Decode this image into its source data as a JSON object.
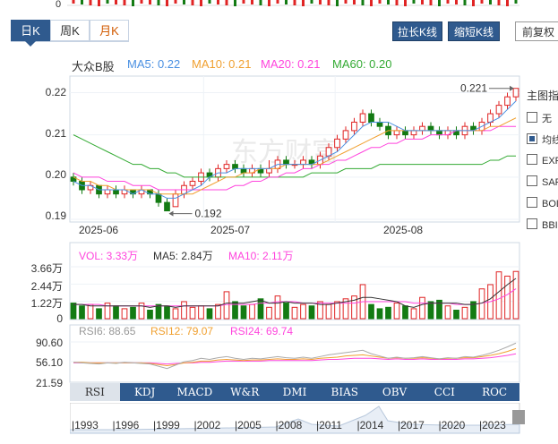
{
  "period_tabs": {
    "day": "日K",
    "week": "周K",
    "month": "月K"
  },
  "buttons": {
    "stretch": "拉长K线",
    "shrink": "缩短K线",
    "restore": "前复权"
  },
  "main_legend": {
    "name": "大众B股",
    "ma5": "MA5: 0.22",
    "ma10": "MA10: 0.21",
    "ma20": "MA20: 0.21",
    "ma60": "MA60: 0.20"
  },
  "price_axis": [
    "0.22",
    "0.21",
    "0.20",
    "0.19"
  ],
  "date_axis": [
    "2025-06",
    "2025-07",
    "2025-08"
  ],
  "annotations": {
    "high": "0.221",
    "low": "0.192"
  },
  "watermark": "东方财富",
  "side_panel": {
    "title": "主图指",
    "items": [
      {
        "label": "无",
        "checked": false
      },
      {
        "label": "均线",
        "checked": true
      },
      {
        "label": "EXPMA",
        "checked": false
      },
      {
        "label": "SAR",
        "checked": false
      },
      {
        "label": "BOLL",
        "checked": false
      },
      {
        "label": "BBI",
        "checked": false
      }
    ]
  },
  "volume_legend": {
    "vol": "VOL: 3.33万",
    "ma5": "MA5: 2.84万",
    "ma10": "MA10: 2.11万"
  },
  "volume_axis": [
    "3.66万",
    "2.44万",
    "1.22万",
    "0"
  ],
  "rsi_legend": {
    "rsi6": "RSI6: 88.65",
    "rsi12": "RSI12: 79.07",
    "rsi24": "RSI24: 69.74"
  },
  "rsi_axis": [
    "90.60",
    "56.10",
    "21.59"
  ],
  "indicator_tabs": [
    "RSI",
    "KDJ",
    "MACD",
    "W&R",
    "DMI",
    "BIAS",
    "OBV",
    "CCI",
    "ROC"
  ],
  "navigator_years": [
    "1993",
    "1996",
    "1999",
    "2002",
    "2005",
    "2008",
    "2011",
    "2014",
    "2017",
    "2020",
    "2023"
  ],
  "colors": {
    "up": "#e02424",
    "down": "#137b13",
    "ma5": "#4a90e2",
    "ma10": "#f0a030",
    "ma20": "#ff44dd",
    "ma60": "#33aa33",
    "accent": "#2f5a8e"
  },
  "chart_data": {
    "type": "candlestick",
    "ylim": [
      0.19,
      0.222
    ],
    "candles": [
      [
        0.2,
        0.199,
        0.201,
        0.198
      ],
      [
        0.199,
        0.197,
        0.2,
        0.196
      ],
      [
        0.197,
        0.198,
        0.199,
        0.196
      ],
      [
        0.198,
        0.196,
        0.198,
        0.195
      ],
      [
        0.196,
        0.197,
        0.198,
        0.195
      ],
      [
        0.197,
        0.196,
        0.198,
        0.195
      ],
      [
        0.196,
        0.197,
        0.198,
        0.195
      ],
      [
        0.197,
        0.196,
        0.197,
        0.195
      ],
      [
        0.196,
        0.197,
        0.198,
        0.195
      ],
      [
        0.197,
        0.196,
        0.197,
        0.195
      ],
      [
        0.196,
        0.194,
        0.197,
        0.193
      ],
      [
        0.194,
        0.192,
        0.195,
        0.192
      ],
      [
        0.193,
        0.196,
        0.197,
        0.193
      ],
      [
        0.196,
        0.198,
        0.199,
        0.195
      ],
      [
        0.198,
        0.199,
        0.2,
        0.197
      ],
      [
        0.199,
        0.201,
        0.202,
        0.198
      ],
      [
        0.201,
        0.2,
        0.202,
        0.199
      ],
      [
        0.2,
        0.202,
        0.203,
        0.199
      ],
      [
        0.202,
        0.203,
        0.204,
        0.201
      ],
      [
        0.203,
        0.202,
        0.204,
        0.201
      ],
      [
        0.202,
        0.201,
        0.203,
        0.2
      ],
      [
        0.201,
        0.202,
        0.203,
        0.2
      ],
      [
        0.202,
        0.201,
        0.203,
        0.2
      ],
      [
        0.201,
        0.202,
        0.204,
        0.2
      ],
      [
        0.202,
        0.204,
        0.205,
        0.201
      ],
      [
        0.204,
        0.203,
        0.205,
        0.202
      ],
      [
        0.203,
        0.203,
        0.204,
        0.202
      ],
      [
        0.203,
        0.204,
        0.205,
        0.202
      ],
      [
        0.204,
        0.203,
        0.205,
        0.202
      ],
      [
        0.203,
        0.205,
        0.206,
        0.202
      ],
      [
        0.205,
        0.207,
        0.208,
        0.204
      ],
      [
        0.207,
        0.209,
        0.21,
        0.206
      ],
      [
        0.209,
        0.211,
        0.212,
        0.208
      ],
      [
        0.211,
        0.213,
        0.214,
        0.21
      ],
      [
        0.213,
        0.215,
        0.216,
        0.212
      ],
      [
        0.215,
        0.213,
        0.216,
        0.212
      ],
      [
        0.213,
        0.212,
        0.214,
        0.211
      ],
      [
        0.212,
        0.21,
        0.213,
        0.209
      ],
      [
        0.21,
        0.211,
        0.212,
        0.209
      ],
      [
        0.211,
        0.21,
        0.212,
        0.209
      ],
      [
        0.21,
        0.211,
        0.212,
        0.209
      ],
      [
        0.211,
        0.212,
        0.213,
        0.21
      ],
      [
        0.212,
        0.211,
        0.213,
        0.21
      ],
      [
        0.211,
        0.21,
        0.212,
        0.209
      ],
      [
        0.21,
        0.211,
        0.212,
        0.209
      ],
      [
        0.211,
        0.21,
        0.212,
        0.209
      ],
      [
        0.21,
        0.212,
        0.213,
        0.209
      ],
      [
        0.212,
        0.211,
        0.213,
        0.21
      ],
      [
        0.211,
        0.213,
        0.214,
        0.21
      ],
      [
        0.213,
        0.215,
        0.216,
        0.212
      ],
      [
        0.215,
        0.217,
        0.218,
        0.214
      ],
      [
        0.217,
        0.219,
        0.22,
        0.216
      ],
      [
        0.219,
        0.221,
        0.221,
        0.218
      ]
    ],
    "ma5": [
      0.199,
      0.198,
      0.198,
      0.197,
      0.197,
      0.197,
      0.197,
      0.196,
      0.197,
      0.196,
      0.196,
      0.195,
      0.195,
      0.196,
      0.197,
      0.198,
      0.2,
      0.201,
      0.201,
      0.202,
      0.202,
      0.202,
      0.202,
      0.202,
      0.203,
      0.203,
      0.203,
      0.203,
      0.203,
      0.204,
      0.205,
      0.206,
      0.208,
      0.21,
      0.212,
      0.213,
      0.213,
      0.213,
      0.212,
      0.211,
      0.211,
      0.211,
      0.211,
      0.211,
      0.211,
      0.211,
      0.211,
      0.211,
      0.212,
      0.213,
      0.214,
      0.216,
      0.218
    ],
    "ma10": [
      0.2,
      0.199,
      0.199,
      0.198,
      0.198,
      0.197,
      0.197,
      0.197,
      0.197,
      0.197,
      0.196,
      0.196,
      0.196,
      0.196,
      0.196,
      0.197,
      0.198,
      0.199,
      0.2,
      0.2,
      0.201,
      0.201,
      0.202,
      0.202,
      0.202,
      0.203,
      0.203,
      0.203,
      0.203,
      0.203,
      0.204,
      0.205,
      0.206,
      0.207,
      0.208,
      0.209,
      0.21,
      0.211,
      0.211,
      0.211,
      0.211,
      0.211,
      0.211,
      0.211,
      0.211,
      0.211,
      0.211,
      0.211,
      0.211,
      0.212,
      0.212,
      0.213,
      0.214
    ],
    "ma20": [
      0.201,
      0.2,
      0.2,
      0.2,
      0.199,
      0.199,
      0.199,
      0.198,
      0.198,
      0.198,
      0.197,
      0.197,
      0.197,
      0.197,
      0.197,
      0.197,
      0.197,
      0.197,
      0.197,
      0.198,
      0.198,
      0.199,
      0.199,
      0.2,
      0.2,
      0.201,
      0.201,
      0.202,
      0.202,
      0.203,
      0.203,
      0.204,
      0.204,
      0.205,
      0.206,
      0.207,
      0.207,
      0.208,
      0.208,
      0.209,
      0.209,
      0.209,
      0.21,
      0.21,
      0.21,
      0.211,
      0.211,
      0.211,
      0.211,
      0.211,
      0.212,
      0.212,
      0.212
    ],
    "ma60": [
      0.21,
      0.209,
      0.208,
      0.207,
      0.206,
      0.205,
      0.204,
      0.203,
      0.203,
      0.202,
      0.202,
      0.201,
      0.201,
      0.2,
      0.2,
      0.2,
      0.2,
      0.2,
      0.2,
      0.2,
      0.2,
      0.2,
      0.2,
      0.2,
      0.2,
      0.2,
      0.2,
      0.2,
      0.201,
      0.201,
      0.201,
      0.201,
      0.202,
      0.202,
      0.202,
      0.202,
      0.203,
      0.203,
      0.203,
      0.203,
      0.203,
      0.203,
      0.203,
      0.203,
      0.203,
      0.203,
      0.203,
      0.203,
      0.203,
      0.204,
      0.204,
      0.205,
      0.205
    ],
    "volume_ylim": [
      0,
      3.66
    ],
    "volume": [
      1.1,
      0.9,
      1.0,
      0.7,
      1.1,
      0.9,
      0.7,
      0.8,
      1.1,
      0.6,
      1.0,
      0.9,
      0.7,
      1.2,
      0.8,
      0.9,
      0.7,
      1.0,
      1.9,
      1.2,
      0.9,
      1.0,
      1.4,
      0.8,
      1.6,
      1.1,
      0.8,
      1.0,
      0.9,
      1.2,
      1.0,
      1.2,
      1.4,
      1.6,
      2.4,
      1.0,
      0.7,
      0.8,
      1.1,
      0.9,
      0.7,
      1.5,
      1.2,
      1.3,
      0.9,
      0.6,
      0.8,
      1.2,
      2.1,
      2.4,
      3.3,
      3.0,
      3.33
    ],
    "volume_ma5": [
      1.0,
      1.0,
      0.9,
      0.9,
      0.9,
      0.9,
      0.9,
      0.9,
      0.9,
      0.8,
      0.9,
      0.9,
      0.8,
      0.9,
      0.9,
      0.9,
      0.9,
      0.9,
      1.1,
      1.1,
      1.1,
      1.2,
      1.3,
      1.1,
      1.1,
      1.2,
      1.1,
      1.1,
      1.1,
      1.0,
      1.0,
      1.1,
      1.2,
      1.3,
      1.5,
      1.5,
      1.4,
      1.3,
      1.2,
      0.9,
      0.8,
      1.0,
      1.1,
      1.1,
      1.1,
      1.1,
      1.0,
      1.0,
      1.1,
      1.4,
      1.9,
      2.4,
      2.84
    ],
    "volume_ma10": [
      1.0,
      1.0,
      1.0,
      1.0,
      0.9,
      0.9,
      0.9,
      0.9,
      0.9,
      0.9,
      0.9,
      0.9,
      0.9,
      0.9,
      0.9,
      0.9,
      0.9,
      0.9,
      1.0,
      1.0,
      1.0,
      1.0,
      1.1,
      1.1,
      1.2,
      1.2,
      1.2,
      1.1,
      1.1,
      1.1,
      1.1,
      1.1,
      1.1,
      1.1,
      1.2,
      1.2,
      1.2,
      1.2,
      1.2,
      1.2,
      1.1,
      1.1,
      1.1,
      1.1,
      1.1,
      1.0,
      1.0,
      1.0,
      1.1,
      1.2,
      1.4,
      1.7,
      2.11
    ],
    "rsi_ylim": [
      21.59,
      90.6
    ],
    "rsi6": [
      55,
      54,
      53,
      52,
      54,
      53,
      55,
      54,
      53,
      52,
      48,
      44,
      50,
      56,
      58,
      62,
      60,
      63,
      65,
      62,
      60,
      62,
      61,
      63,
      65,
      63,
      62,
      64,
      62,
      65,
      68,
      70,
      72,
      74,
      76,
      70,
      66,
      62,
      64,
      62,
      63,
      65,
      63,
      61,
      63,
      62,
      65,
      64,
      67,
      71,
      76,
      82,
      88.65
    ],
    "rsi12": [
      55,
      55,
      54,
      54,
      54,
      54,
      54,
      54,
      54,
      53,
      51,
      49,
      51,
      54,
      55,
      57,
      57,
      59,
      60,
      59,
      58,
      59,
      59,
      60,
      61,
      60,
      60,
      61,
      60,
      62,
      63,
      64,
      66,
      67,
      68,
      66,
      64,
      62,
      63,
      62,
      62,
      63,
      62,
      61,
      62,
      62,
      63,
      63,
      65,
      67,
      70,
      74,
      79.07
    ],
    "rsi24": [
      54,
      54,
      54,
      54,
      54,
      54,
      54,
      54,
      54,
      54,
      53,
      52,
      53,
      54,
      54,
      55,
      55,
      56,
      57,
      57,
      57,
      57,
      57,
      58,
      58,
      58,
      58,
      58,
      58,
      59,
      60,
      60,
      61,
      62,
      62,
      62,
      61,
      60,
      61,
      60,
      60,
      61,
      60,
      60,
      60,
      60,
      61,
      61,
      62,
      63,
      65,
      67,
      69.74
    ]
  }
}
